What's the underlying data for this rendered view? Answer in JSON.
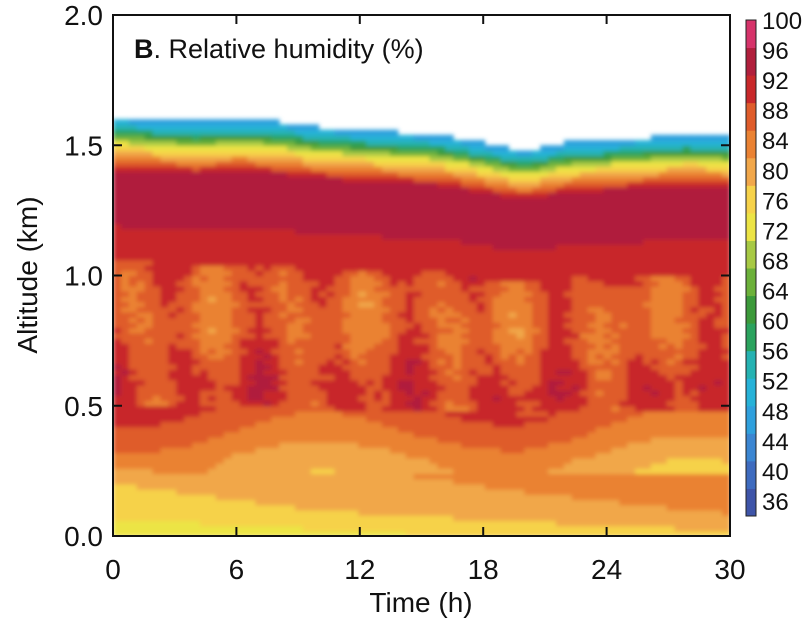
{
  "chart_data": {
    "type": "heatmap",
    "title_letter": "B",
    "title": ". Relative humidity (%)",
    "xlabel": "Time (h)",
    "ylabel": "Altitude (km)",
    "xlim": [
      0,
      30
    ],
    "ylim": [
      0,
      2.0
    ],
    "xticks": [
      "0",
      "6",
      "12",
      "18",
      "24",
      "30"
    ],
    "yticks": [
      "0.0",
      "0.5",
      "1.0",
      "1.5",
      "2.0"
    ],
    "colorbar": {
      "min": 34,
      "max": 100,
      "ticks": [
        "36",
        "40",
        "44",
        "48",
        "52",
        "56",
        "60",
        "64",
        "68",
        "72",
        "76",
        "80",
        "84",
        "88",
        "92",
        "96",
        "100"
      ],
      "colors": [
        "#3e54a8",
        "#3e6bbf",
        "#3b86d2",
        "#2fa0dd",
        "#27b2d8",
        "#25b2b2",
        "#2ba35e",
        "#3c9a3a",
        "#6cb13a",
        "#a7c944",
        "#ece445",
        "#f6d24a",
        "#f1a74a",
        "#ea8233",
        "#df5c2b",
        "#c8282a",
        "#b01f3c",
        "#d6336a"
      ]
    },
    "x": [
      0,
      2,
      4,
      6,
      8,
      10,
      12,
      14,
      16,
      18,
      20,
      22,
      24,
      26,
      28,
      30
    ],
    "boundary_layer_top_km": [
      1.59,
      1.58,
      1.57,
      1.58,
      1.57,
      1.55,
      1.54,
      1.53,
      1.52,
      1.49,
      1.46,
      1.49,
      1.5,
      1.51,
      1.52,
      1.51
    ],
    "profile_altitude_km": [
      0.0,
      0.1,
      0.2,
      0.3,
      0.4,
      0.5,
      0.6,
      0.7,
      0.8,
      0.9,
      1.0,
      1.1,
      1.2,
      1.3,
      1.4,
      1.45,
      1.5,
      1.55,
      1.6
    ],
    "profile_rh_percent": [
      73,
      78,
      80,
      82,
      86,
      89,
      90,
      88,
      86,
      86,
      87,
      91,
      93,
      95,
      93,
      82,
      72,
      56,
      45
    ]
  }
}
